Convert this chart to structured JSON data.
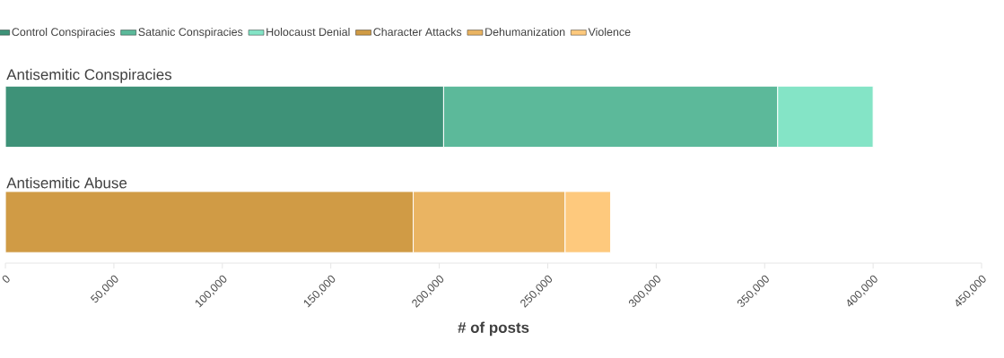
{
  "chart_data": {
    "type": "bar",
    "orientation": "horizontal",
    "stacked": true,
    "categories": [
      "Antisemitic Conspiracies",
      "Antisemitic Abuse"
    ],
    "series": [
      {
        "name": "Control Conspiracies",
        "color": "#3e9278",
        "values": [
          202000,
          null
        ]
      },
      {
        "name": "Satanic Conspiracies",
        "color": "#5cb99a",
        "values": [
          154000,
          null
        ]
      },
      {
        "name": "Holocaust Denial",
        "color": "#84e4c6",
        "values": [
          44000,
          null
        ]
      },
      {
        "name": "Character Attacks",
        "color": "#d09b45",
        "values": [
          null,
          188000
        ]
      },
      {
        "name": "Dehumanization",
        "color": "#eab462",
        "values": [
          null,
          70000
        ]
      },
      {
        "name": "Violence",
        "color": "#fec97d",
        "values": [
          null,
          21000
        ]
      }
    ],
    "xlabel": "# of posts",
    "xlim": [
      0,
      450000
    ],
    "xticks": [
      0,
      {
        "value": 50000,
        "label": "50,000"
      },
      {
        "value": 100000,
        "label": "100,000"
      },
      {
        "value": 150000,
        "label": "150,000"
      },
      {
        "value": 200000,
        "label": "200,000"
      },
      {
        "value": 250000,
        "label": "250,000"
      },
      {
        "value": 300000,
        "label": "300,000"
      },
      {
        "value": 350000,
        "label": "350,000"
      },
      {
        "value": 400000,
        "label": "400,000"
      },
      {
        "value": 450000,
        "label": "450,000"
      }
    ],
    "legend": "top",
    "grid": false
  }
}
